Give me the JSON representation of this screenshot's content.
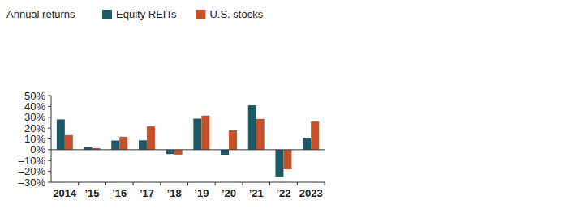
{
  "chart_data": {
    "type": "bar",
    "y_label": "Annual returns",
    "categories": [
      "2014",
      "’15",
      "’16",
      "’17",
      "’18",
      "’19",
      "’20",
      "’21",
      "’22",
      "2023"
    ],
    "series": [
      {
        "name": "Equity REITs",
        "color": "#1d5a68",
        "values": [
          28,
          2.5,
          8.5,
          8.7,
          -4,
          28.7,
          -5,
          41,
          -25,
          11
        ]
      },
      {
        "name": "U.S. stocks",
        "color": "#c5512b",
        "values": [
          13.5,
          1.5,
          12,
          21.5,
          -4.5,
          31.5,
          18,
          28.5,
          -18,
          26
        ]
      }
    ],
    "ylim": [
      -30,
      50
    ],
    "yticks": [
      {
        "value": 50,
        "label": "50%"
      },
      {
        "value": 40,
        "label": "40%"
      },
      {
        "value": 30,
        "label": "30%"
      },
      {
        "value": 20,
        "label": "20%"
      },
      {
        "value": 10,
        "label": "10%"
      },
      {
        "value": 0,
        "label": "0%"
      },
      {
        "value": -10,
        "label": "–10%"
      },
      {
        "value": -20,
        "label": "–20%"
      },
      {
        "value": -30,
        "label": "–30%"
      }
    ],
    "grid": false,
    "legend": "top-left"
  }
}
